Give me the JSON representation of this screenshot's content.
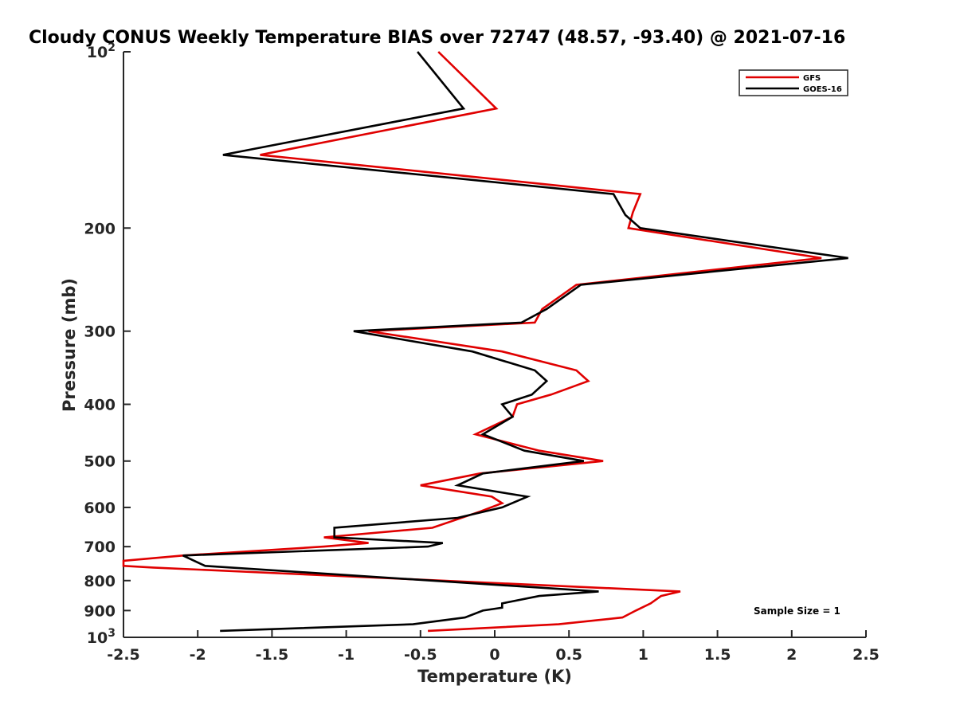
{
  "chart_data": {
    "type": "line",
    "title": "Cloudy CONUS Weekly Temperature BIAS over 72747 (48.57, -93.40) @ 2021-07-16",
    "xlabel": "Temperature (K)",
    "ylabel": "Pressure (mb)",
    "xlim": [
      -2.5,
      2.5
    ],
    "ylim": [
      100,
      1000
    ],
    "yscale": "log",
    "y_reversed": true,
    "grid": false,
    "legend_position": "top-right",
    "x_ticks": [
      -2.5,
      -2,
      -1.5,
      -1,
      -0.5,
      0,
      0.5,
      1,
      1.5,
      2,
      2.5
    ],
    "x_tick_labels": [
      "-2.5",
      "-2",
      "-1.5",
      "-1",
      "-0.5",
      "0",
      "0.5",
      "1",
      "1.5",
      "2",
      "2.5"
    ],
    "y_ticks": [
      200,
      300,
      400,
      500,
      600,
      700,
      800,
      900
    ],
    "y_tick_labels": [
      "200",
      "300",
      "400",
      "500",
      "600",
      "700",
      "800",
      "900"
    ],
    "y_decade_ticks": [
      {
        "value": 100,
        "base": "10",
        "exp": "2"
      },
      {
        "value": 1000,
        "base": "10",
        "exp": "3"
      }
    ],
    "annotation": "Sample Size = 1",
    "series": [
      {
        "name": "GFS",
        "color": "#e00000",
        "points": [
          [
            -0.38,
            100
          ],
          [
            0.01,
            125
          ],
          [
            -1.58,
            150
          ],
          [
            0.98,
            175
          ],
          [
            0.93,
            188
          ],
          [
            0.9,
            200
          ],
          [
            2.2,
            225
          ],
          [
            0.55,
            250
          ],
          [
            0.32,
            275
          ],
          [
            0.27,
            290
          ],
          [
            -0.85,
            300
          ],
          [
            0.05,
            325
          ],
          [
            0.55,
            350
          ],
          [
            0.63,
            365
          ],
          [
            0.38,
            385
          ],
          [
            0.15,
            400
          ],
          [
            0.12,
            420
          ],
          [
            -0.13,
            450
          ],
          [
            0.3,
            480
          ],
          [
            0.73,
            500
          ],
          [
            -0.1,
            525
          ],
          [
            -0.5,
            550
          ],
          [
            -0.02,
            575
          ],
          [
            0.05,
            590
          ],
          [
            -0.1,
            610
          ],
          [
            -0.42,
            650
          ],
          [
            -1.15,
            675
          ],
          [
            -0.85,
            690
          ],
          [
            -1.15,
            700
          ],
          [
            -2.1,
            725
          ],
          [
            -2.5,
            740
          ],
          [
            -2.5,
            755
          ],
          [
            -2.3,
            760
          ],
          [
            1.25,
            835
          ],
          [
            1.12,
            850
          ],
          [
            1.05,
            875
          ],
          [
            0.95,
            900
          ],
          [
            0.86,
            925
          ],
          [
            0.43,
            950
          ],
          [
            -0.45,
            975
          ]
        ]
      },
      {
        "name": "GOES-16",
        "color": "#000000",
        "points": [
          [
            -0.52,
            100
          ],
          [
            -0.21,
            125
          ],
          [
            -1.83,
            150
          ],
          [
            0.8,
            175
          ],
          [
            0.88,
            190
          ],
          [
            0.98,
            200
          ],
          [
            2.38,
            225
          ],
          [
            0.58,
            250
          ],
          [
            0.35,
            275
          ],
          [
            0.18,
            290
          ],
          [
            -0.95,
            300
          ],
          [
            -0.15,
            325
          ],
          [
            0.27,
            350
          ],
          [
            0.35,
            365
          ],
          [
            0.25,
            385
          ],
          [
            0.05,
            400
          ],
          [
            0.12,
            420
          ],
          [
            -0.08,
            450
          ],
          [
            0.2,
            480
          ],
          [
            0.6,
            500
          ],
          [
            -0.08,
            525
          ],
          [
            -0.25,
            550
          ],
          [
            0.22,
            575
          ],
          [
            0.05,
            600
          ],
          [
            -0.25,
            625
          ],
          [
            -1.08,
            650
          ],
          [
            -1.08,
            675
          ],
          [
            -0.35,
            690
          ],
          [
            -0.45,
            700
          ],
          [
            -2.1,
            725
          ],
          [
            -1.95,
            755
          ],
          [
            0.7,
            835
          ],
          [
            0.3,
            850
          ],
          [
            0.05,
            875
          ],
          [
            0.05,
            890
          ],
          [
            -0.08,
            900
          ],
          [
            -0.2,
            925
          ],
          [
            -0.55,
            950
          ],
          [
            -1.85,
            975
          ]
        ]
      }
    ]
  }
}
